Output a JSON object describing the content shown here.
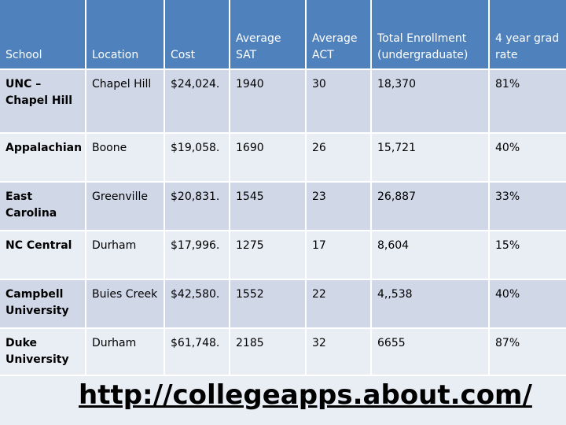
{
  "table": {
    "headers": [
      "School",
      "Location",
      "Cost",
      "Average SAT",
      "Average ACT",
      "Total Enrollment (undergraduate)",
      "4 year grad rate"
    ],
    "rows": [
      [
        "UNC – Chapel Hill",
        "Chapel Hill",
        "$24,024.",
        "1940",
        "30",
        "18,370",
        "81%"
      ],
      [
        "Appalachian",
        "Boone",
        "$19,058.",
        "1690",
        "26",
        "15,721",
        "40%"
      ],
      [
        "East Carolina",
        "Greenville",
        "$20,831.",
        "1545",
        "23",
        "26,887",
        "33%"
      ],
      [
        "NC Central",
        "Durham",
        "$17,996.",
        "1275",
        "17",
        "8,604",
        "15%"
      ],
      [
        "Campbell University",
        "Buies Creek",
        "$42,580.",
        "1552",
        "22",
        "4,,538",
        "40%"
      ],
      [
        "Duke University",
        "Durham",
        "$61,748.",
        "2185",
        "32",
        "6655",
        "87%"
      ]
    ]
  },
  "footer": {
    "link_text": "http://collegeapps.about.com/"
  }
}
